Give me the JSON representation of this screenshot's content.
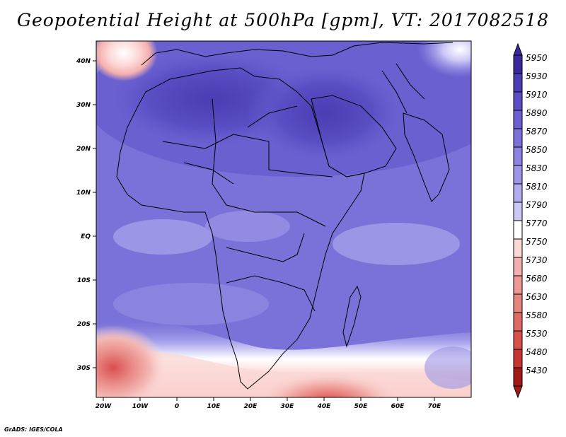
{
  "title": "Geopotential Height at 500hPa [gpm], VT: 2017082518",
  "credit": "GrADS: IGES/COLA",
  "map": {
    "lat_ticks": [
      "40N",
      "30N",
      "20N",
      "10N",
      "EQ",
      "10S",
      "20S",
      "30S"
    ],
    "lon_ticks": [
      "20W",
      "10W",
      "0",
      "10E",
      "20E",
      "30E",
      "40E",
      "50E",
      "60E",
      "70E"
    ]
  },
  "colorbar": {
    "levels": [
      "5950",
      "5930",
      "5910",
      "5890",
      "5870",
      "5850",
      "5830",
      "5810",
      "5790",
      "5770",
      "5750",
      "5730",
      "5680",
      "5630",
      "5580",
      "5530",
      "5480",
      "5430"
    ],
    "colors": [
      "#3c289e",
      "#4a3cb2",
      "#5a4ec4",
      "#6a60d0",
      "#7a72d8",
      "#8a84e0",
      "#9c96e6",
      "#b0acee",
      "#ccc8f6",
      "#ffffff",
      "#fbd8d6",
      "#f4b0ae",
      "#ec9894",
      "#e68480",
      "#e06a66",
      "#d8504c",
      "#c83432",
      "#a01a1a"
    ]
  }
}
